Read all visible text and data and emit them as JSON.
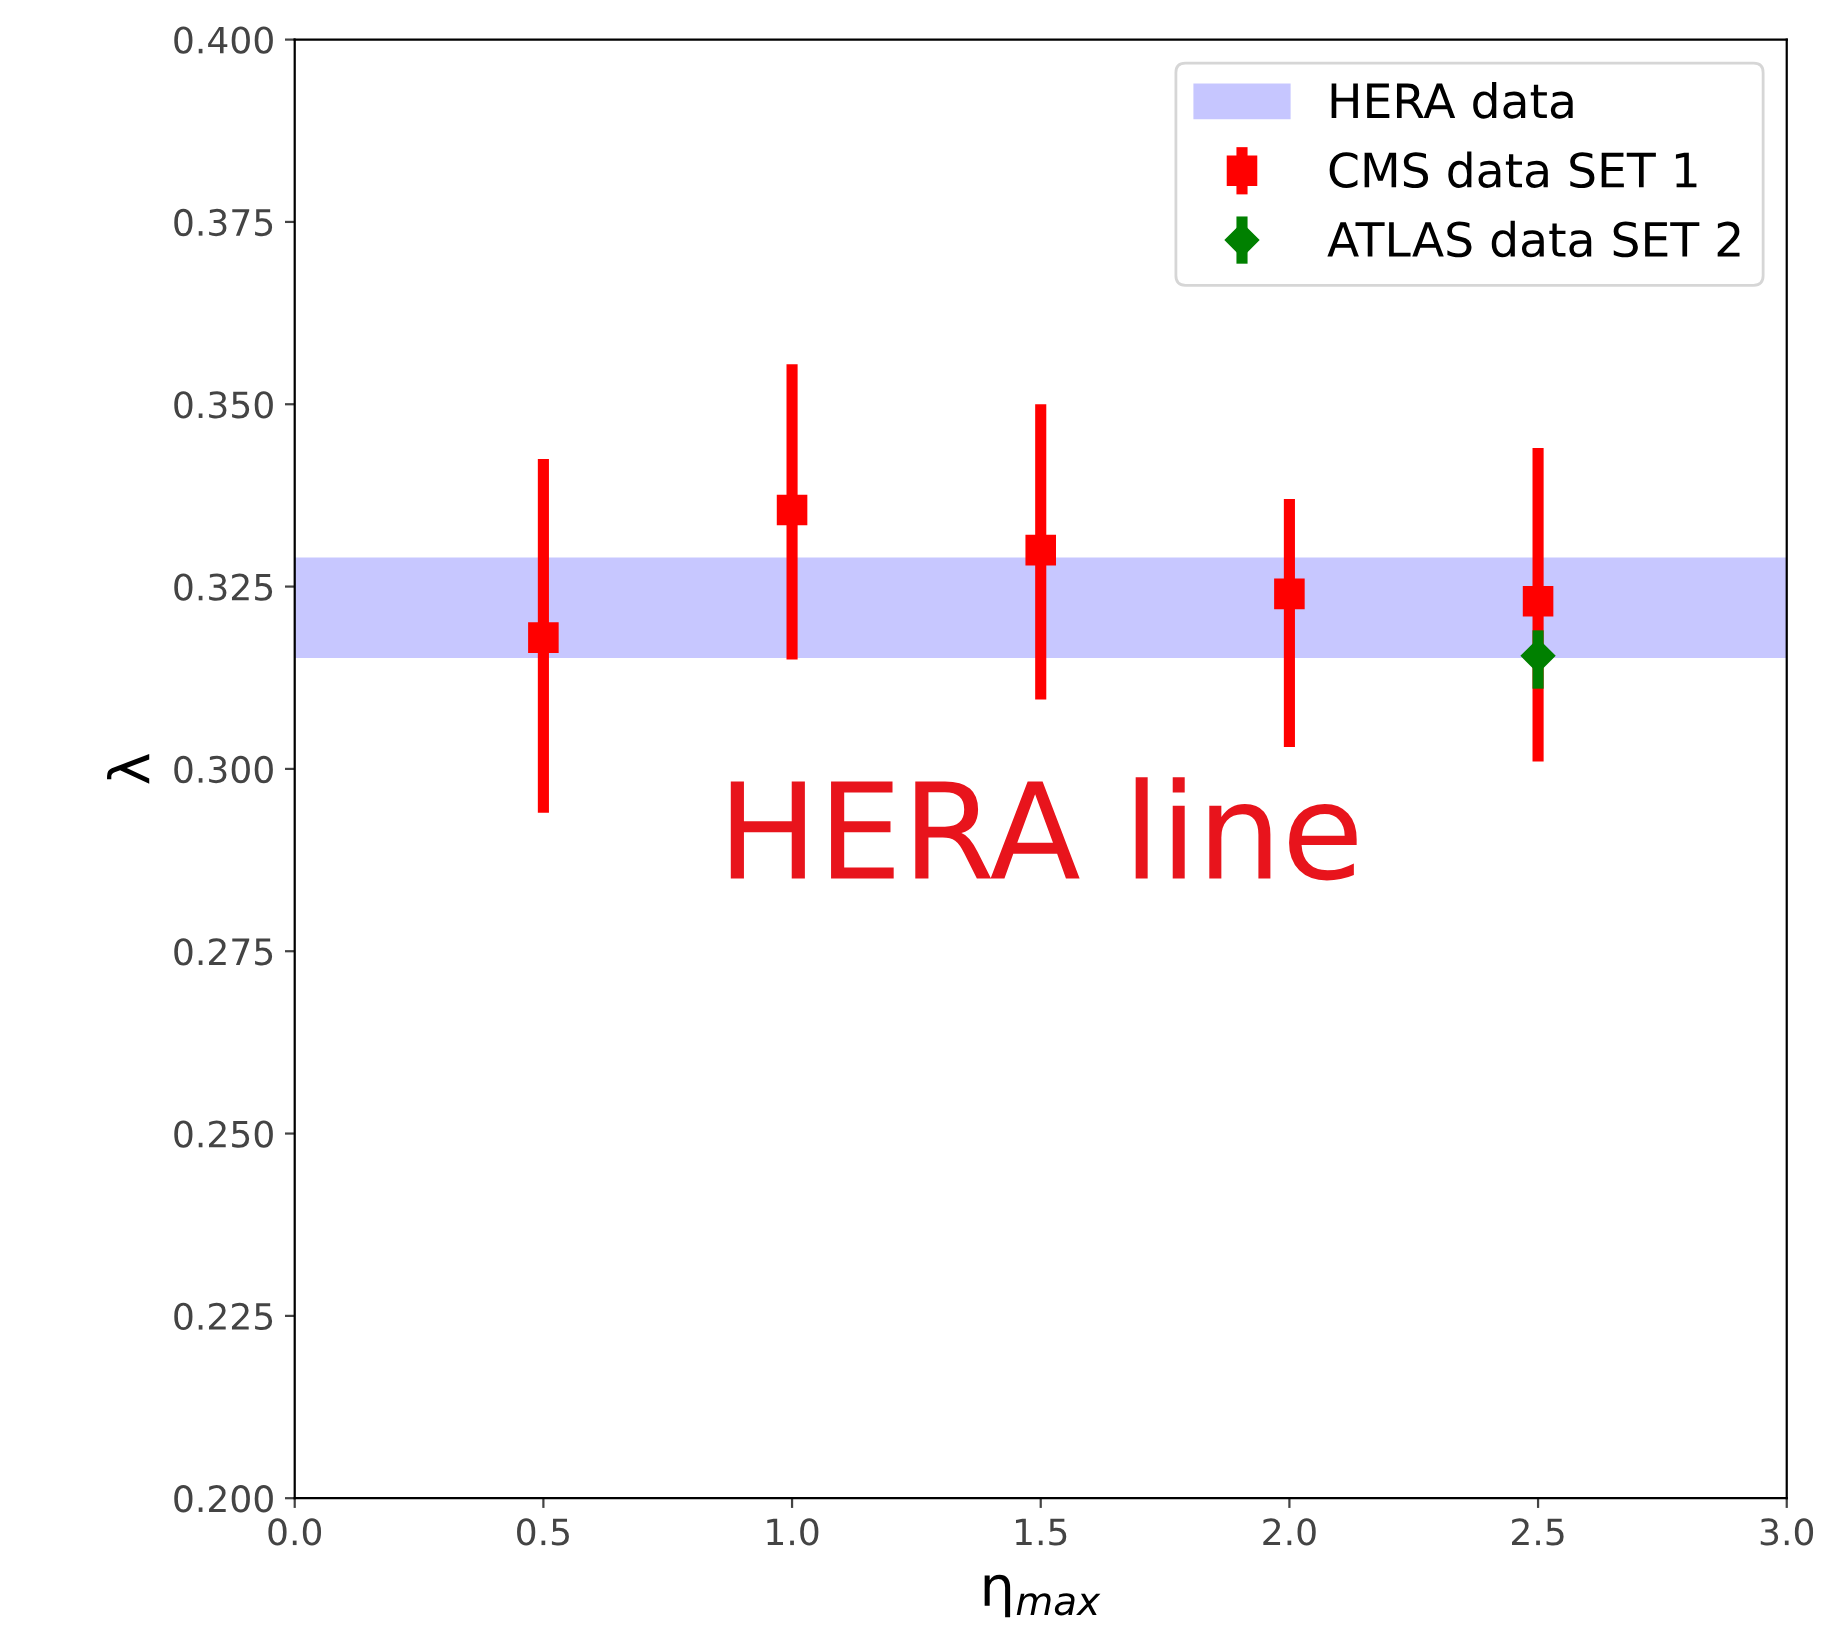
{
  "chart_data": {
    "type": "scatter",
    "xlabel": "η$_{max}$",
    "ylabel": "λ",
    "series": [
      {
        "name": "CMS data SET 1",
        "color": "#ff0000",
        "marker": "square",
        "x": [
          0.5,
          1.0,
          1.5,
          2.0,
          2.5
        ],
        "values": [
          0.318,
          0.3355,
          0.33,
          0.324,
          0.323
        ],
        "errors": [
          [
            0.294,
            0.3425
          ],
          [
            0.315,
            0.3555
          ],
          [
            0.3095,
            0.35
          ],
          [
            0.303,
            0.337
          ],
          [
            0.301,
            0.344
          ]
        ]
      },
      {
        "name": "ATLAS data SET 2",
        "color": "#008000",
        "marker": "diamond",
        "x": [
          2.5
        ],
        "values": [
          0.3155
        ],
        "errors": [
          [
            0.311,
            0.319
          ]
        ]
      }
    ],
    "bands": [
      {
        "axis": "y",
        "from": 0.3152,
        "to": 0.329,
        "label": "HERA data",
        "color": "#0000ff"
      }
    ],
    "annotations": [
      "HERA line"
    ],
    "xlim": [
      0.0,
      3.0
    ],
    "xticks": [
      {
        "value": 0.0,
        "label": "0.0"
      },
      0.5,
      {
        "value": 1.0,
        "label": "1.0"
      },
      1.5,
      {
        "value": 2.0,
        "label": "2.0"
      },
      2.5,
      {
        "value": 3.0,
        "label": "3.0"
      }
    ],
    "ylim": [
      0.2,
      0.4
    ],
    "yticks": [
      {
        "value": 0.2,
        "label": "0.200"
      },
      {
        "value": 0.225,
        "label": "0.225"
      },
      {
        "value": 0.25,
        "label": "0.250"
      },
      {
        "value": 0.275,
        "label": "0.275"
      },
      {
        "value": 0.3,
        "label": "0.300"
      },
      {
        "value": 0.325,
        "label": "0.325"
      },
      {
        "value": 0.35,
        "label": "0.350"
      },
      {
        "value": 0.375,
        "label": "0.375"
      },
      {
        "value": 0.4,
        "label": "0.400"
      }
    ],
    "grid": false,
    "legend": "top right"
  }
}
